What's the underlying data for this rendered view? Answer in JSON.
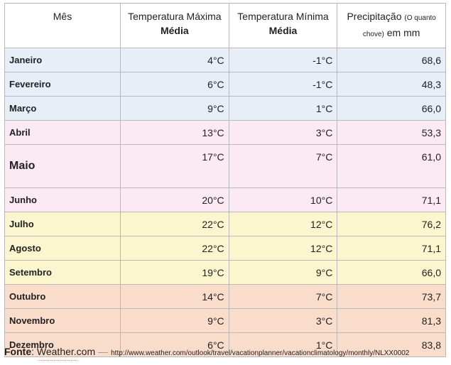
{
  "headers": {
    "month": "Mês",
    "max_line1": "Temperatura Máxima",
    "max_line2": "Média",
    "min_line1": "Temperatura Mínima",
    "min_line2": "Média",
    "precip_line1": "Precipitação",
    "precip_small": "(O quanto chove)",
    "precip_tail": "em mm"
  },
  "rows": [
    {
      "month": "Janeiro",
      "max": "4°C",
      "min": "-1°C",
      "precip": "68,6",
      "season": "winter"
    },
    {
      "month": "Fevereiro",
      "max": "6°C",
      "min": "-1°C",
      "precip": "48,3",
      "season": "winter"
    },
    {
      "month": "Março",
      "max": "9°C",
      "min": "1°C",
      "precip": "66,0",
      "season": "winter"
    },
    {
      "month": "Abril",
      "max": "13°C",
      "min": "3°C",
      "precip": "53,3",
      "season": "spring"
    },
    {
      "month": "Maio",
      "max": "17°C",
      "min": "7°C",
      "precip": "61,0",
      "season": "spring"
    },
    {
      "month": "Junho",
      "max": "20°C",
      "min": "10°C",
      "precip": "71,1",
      "season": "spring"
    },
    {
      "month": "Julho",
      "max": "22°C",
      "min": "12°C",
      "precip": "76,2",
      "season": "summer"
    },
    {
      "month": "Agosto",
      "max": "22°C",
      "min": "12°C",
      "precip": "71,1",
      "season": "summer"
    },
    {
      "month": "Setembro",
      "max": "19°C",
      "min": "9°C",
      "precip": "66,0",
      "season": "summer"
    },
    {
      "month": "Outubro",
      "max": "14°C",
      "min": "7°C",
      "precip": "73,7",
      "season": "autumn"
    },
    {
      "month": "Novembro",
      "max": "9°C",
      "min": "3°C",
      "precip": "81,3",
      "season": "autumn"
    },
    {
      "month": "Dezembro",
      "max": "6°C",
      "min": "1°C",
      "precip": "83,8",
      "season": "autumn"
    }
  ],
  "source": {
    "label": "Fonte",
    "site": "Weather.com",
    "dash": "—",
    "url": "http://www.weather.com/outlook/travel/vacationplanner/vacationclimatology/monthly/NLXX0002"
  },
  "colors": {
    "winter": "#e7eef8",
    "spring": "#fbe9f4",
    "summer": "#fbf6cd",
    "autumn": "#f9ddca"
  }
}
